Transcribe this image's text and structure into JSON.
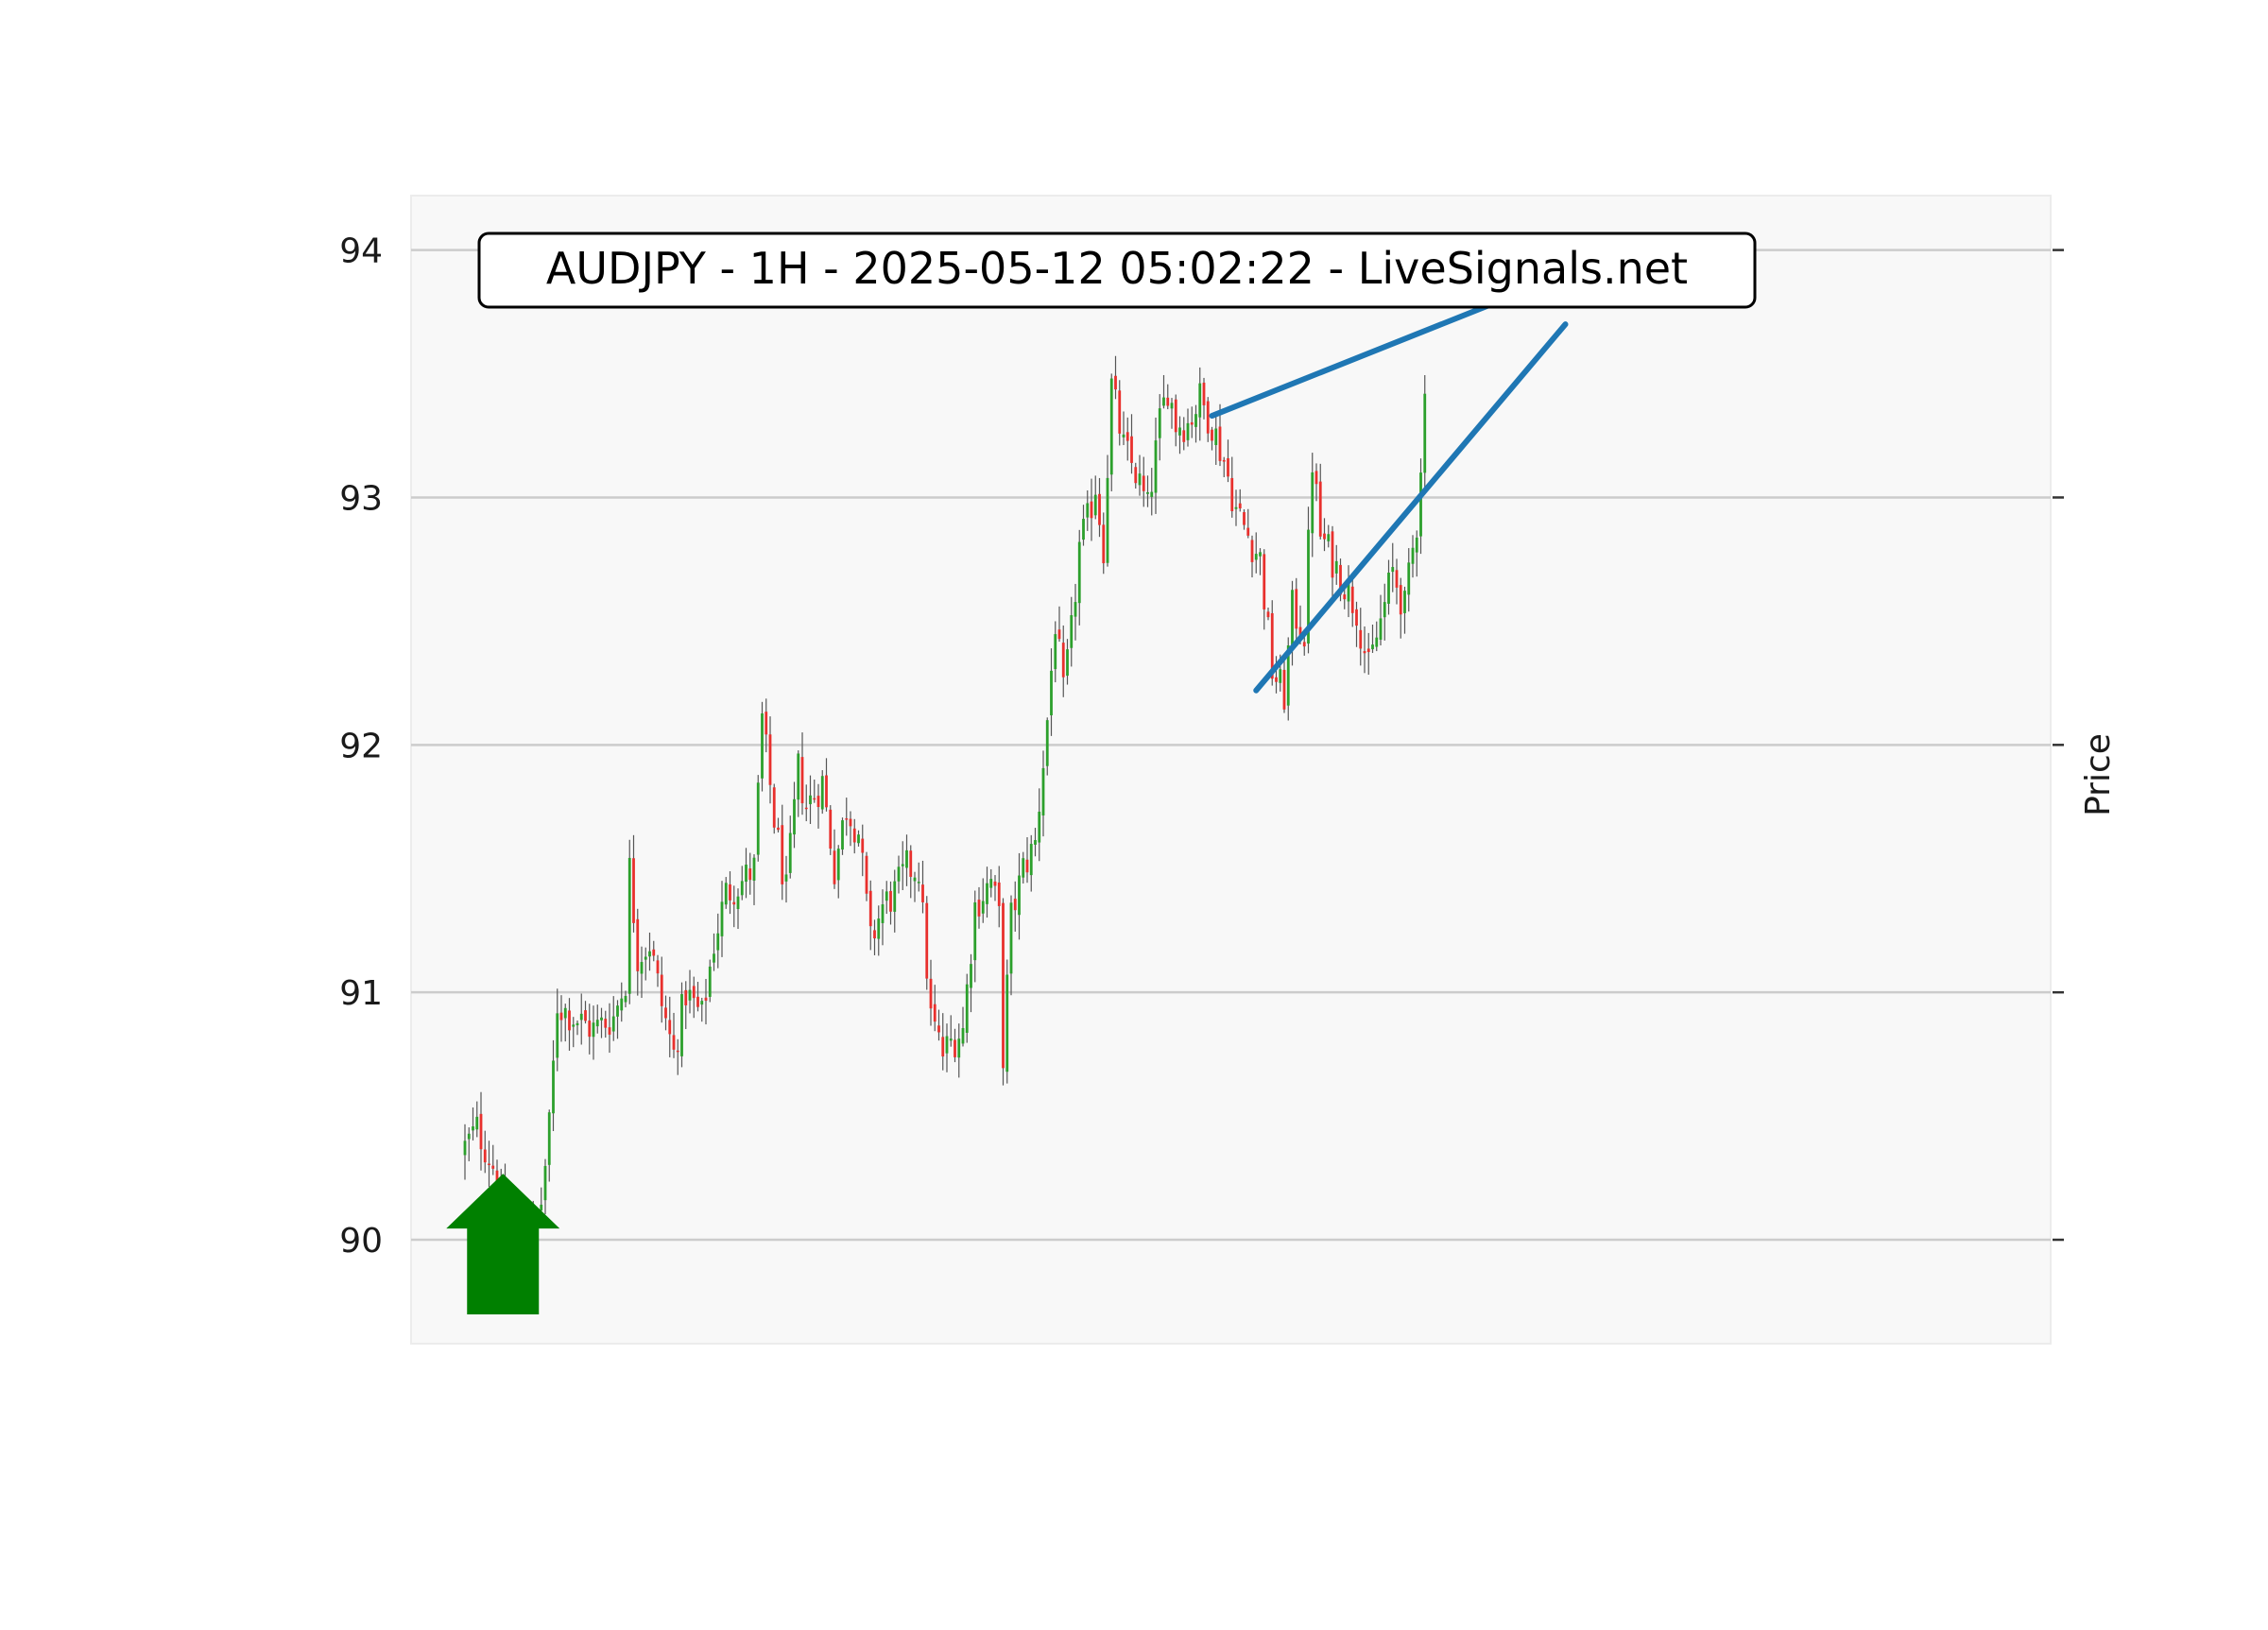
{
  "chart_data": {
    "type": "candlestick",
    "title": "AUDJPY - 1H - 2025-05-12 05:02:22 - LiveSignals.net",
    "ylabel": "Price",
    "ylim": [
      89.58,
      94.22
    ],
    "yticks": [
      "90",
      "91",
      "92",
      "93",
      "94"
    ],
    "grid": true,
    "colors": {
      "up": "#2ca02c",
      "down": "#e8302d",
      "wick": "#555555",
      "trendline": "#1f77b4",
      "signal_arrow": "#008000",
      "plot_background": "#f8f8f8",
      "grid": "#cccccc"
    },
    "bar_count": 240,
    "close_path": [
      [
        0,
        90.35
      ],
      [
        4,
        90.45
      ],
      [
        8,
        90.3
      ],
      [
        11,
        90.05
      ],
      [
        14,
        89.72
      ],
      [
        17,
        90.0
      ],
      [
        20,
        90.15
      ],
      [
        22,
        90.45
      ],
      [
        24,
        90.95
      ],
      [
        28,
        90.9
      ],
      [
        33,
        90.85
      ],
      [
        38,
        90.9
      ],
      [
        41,
        91.05
      ],
      [
        42,
        91.5
      ],
      [
        44,
        91.15
      ],
      [
        47,
        91.2
      ],
      [
        50,
        90.95
      ],
      [
        53,
        90.75
      ],
      [
        56,
        91.0
      ],
      [
        60,
        90.9
      ],
      [
        63,
        91.2
      ],
      [
        66,
        91.4
      ],
      [
        70,
        91.45
      ],
      [
        73,
        91.5
      ],
      [
        75,
        92.1
      ],
      [
        78,
        91.7
      ],
      [
        81,
        91.4
      ],
      [
        84,
        91.9
      ],
      [
        86,
        91.75
      ],
      [
        90,
        91.85
      ],
      [
        93,
        91.5
      ],
      [
        96,
        91.75
      ],
      [
        99,
        91.65
      ],
      [
        102,
        91.2
      ],
      [
        105,
        91.35
      ],
      [
        108,
        91.4
      ],
      [
        111,
        91.5
      ],
      [
        114,
        91.5
      ],
      [
        117,
        90.9
      ],
      [
        120,
        90.75
      ],
      [
        122,
        90.8
      ],
      [
        125,
        90.85
      ],
      [
        128,
        91.35
      ],
      [
        132,
        91.45
      ],
      [
        134,
        91.3
      ],
      [
        135,
        90.75
      ],
      [
        137,
        91.3
      ],
      [
        140,
        91.5
      ],
      [
        143,
        91.6
      ],
      [
        146,
        92.1
      ],
      [
        148,
        92.5
      ],
      [
        150,
        92.2
      ],
      [
        152,
        92.45
      ],
      [
        154,
        92.8
      ],
      [
        156,
        92.9
      ],
      [
        158,
        93.05
      ],
      [
        160,
        92.8
      ],
      [
        162,
        93.45
      ],
      [
        165,
        93.2
      ],
      [
        168,
        93.1
      ],
      [
        171,
        92.95
      ],
      [
        174,
        93.3
      ],
      [
        176,
        93.45
      ],
      [
        178,
        93.3
      ],
      [
        181,
        93.3
      ],
      [
        184,
        93.4
      ],
      [
        187,
        93.3
      ],
      [
        190,
        93.15
      ],
      [
        193,
        92.95
      ],
      [
        196,
        92.85
      ],
      [
        199,
        92.75
      ],
      [
        202,
        92.3
      ],
      [
        205,
        92.2
      ],
      [
        207,
        92.55
      ],
      [
        210,
        92.45
      ],
      [
        212,
        93.15
      ],
      [
        214,
        92.85
      ],
      [
        217,
        92.75
      ],
      [
        220,
        92.65
      ],
      [
        223,
        92.55
      ],
      [
        226,
        92.3
      ],
      [
        229,
        92.5
      ],
      [
        232,
        92.7
      ],
      [
        235,
        92.55
      ],
      [
        238,
        92.9
      ],
      [
        239,
        93.15
      ],
      [
        240,
        93.4
      ]
    ],
    "trendlines": [
      {
        "x": [
          186,
          274
        ],
        "y": [
          93.33,
          93.9
        ]
      },
      {
        "x": [
          197,
          274
        ],
        "y": [
          92.22,
          93.7
        ]
      }
    ],
    "signal": {
      "direction": "up",
      "bar": 1,
      "price": 89.95
    }
  }
}
